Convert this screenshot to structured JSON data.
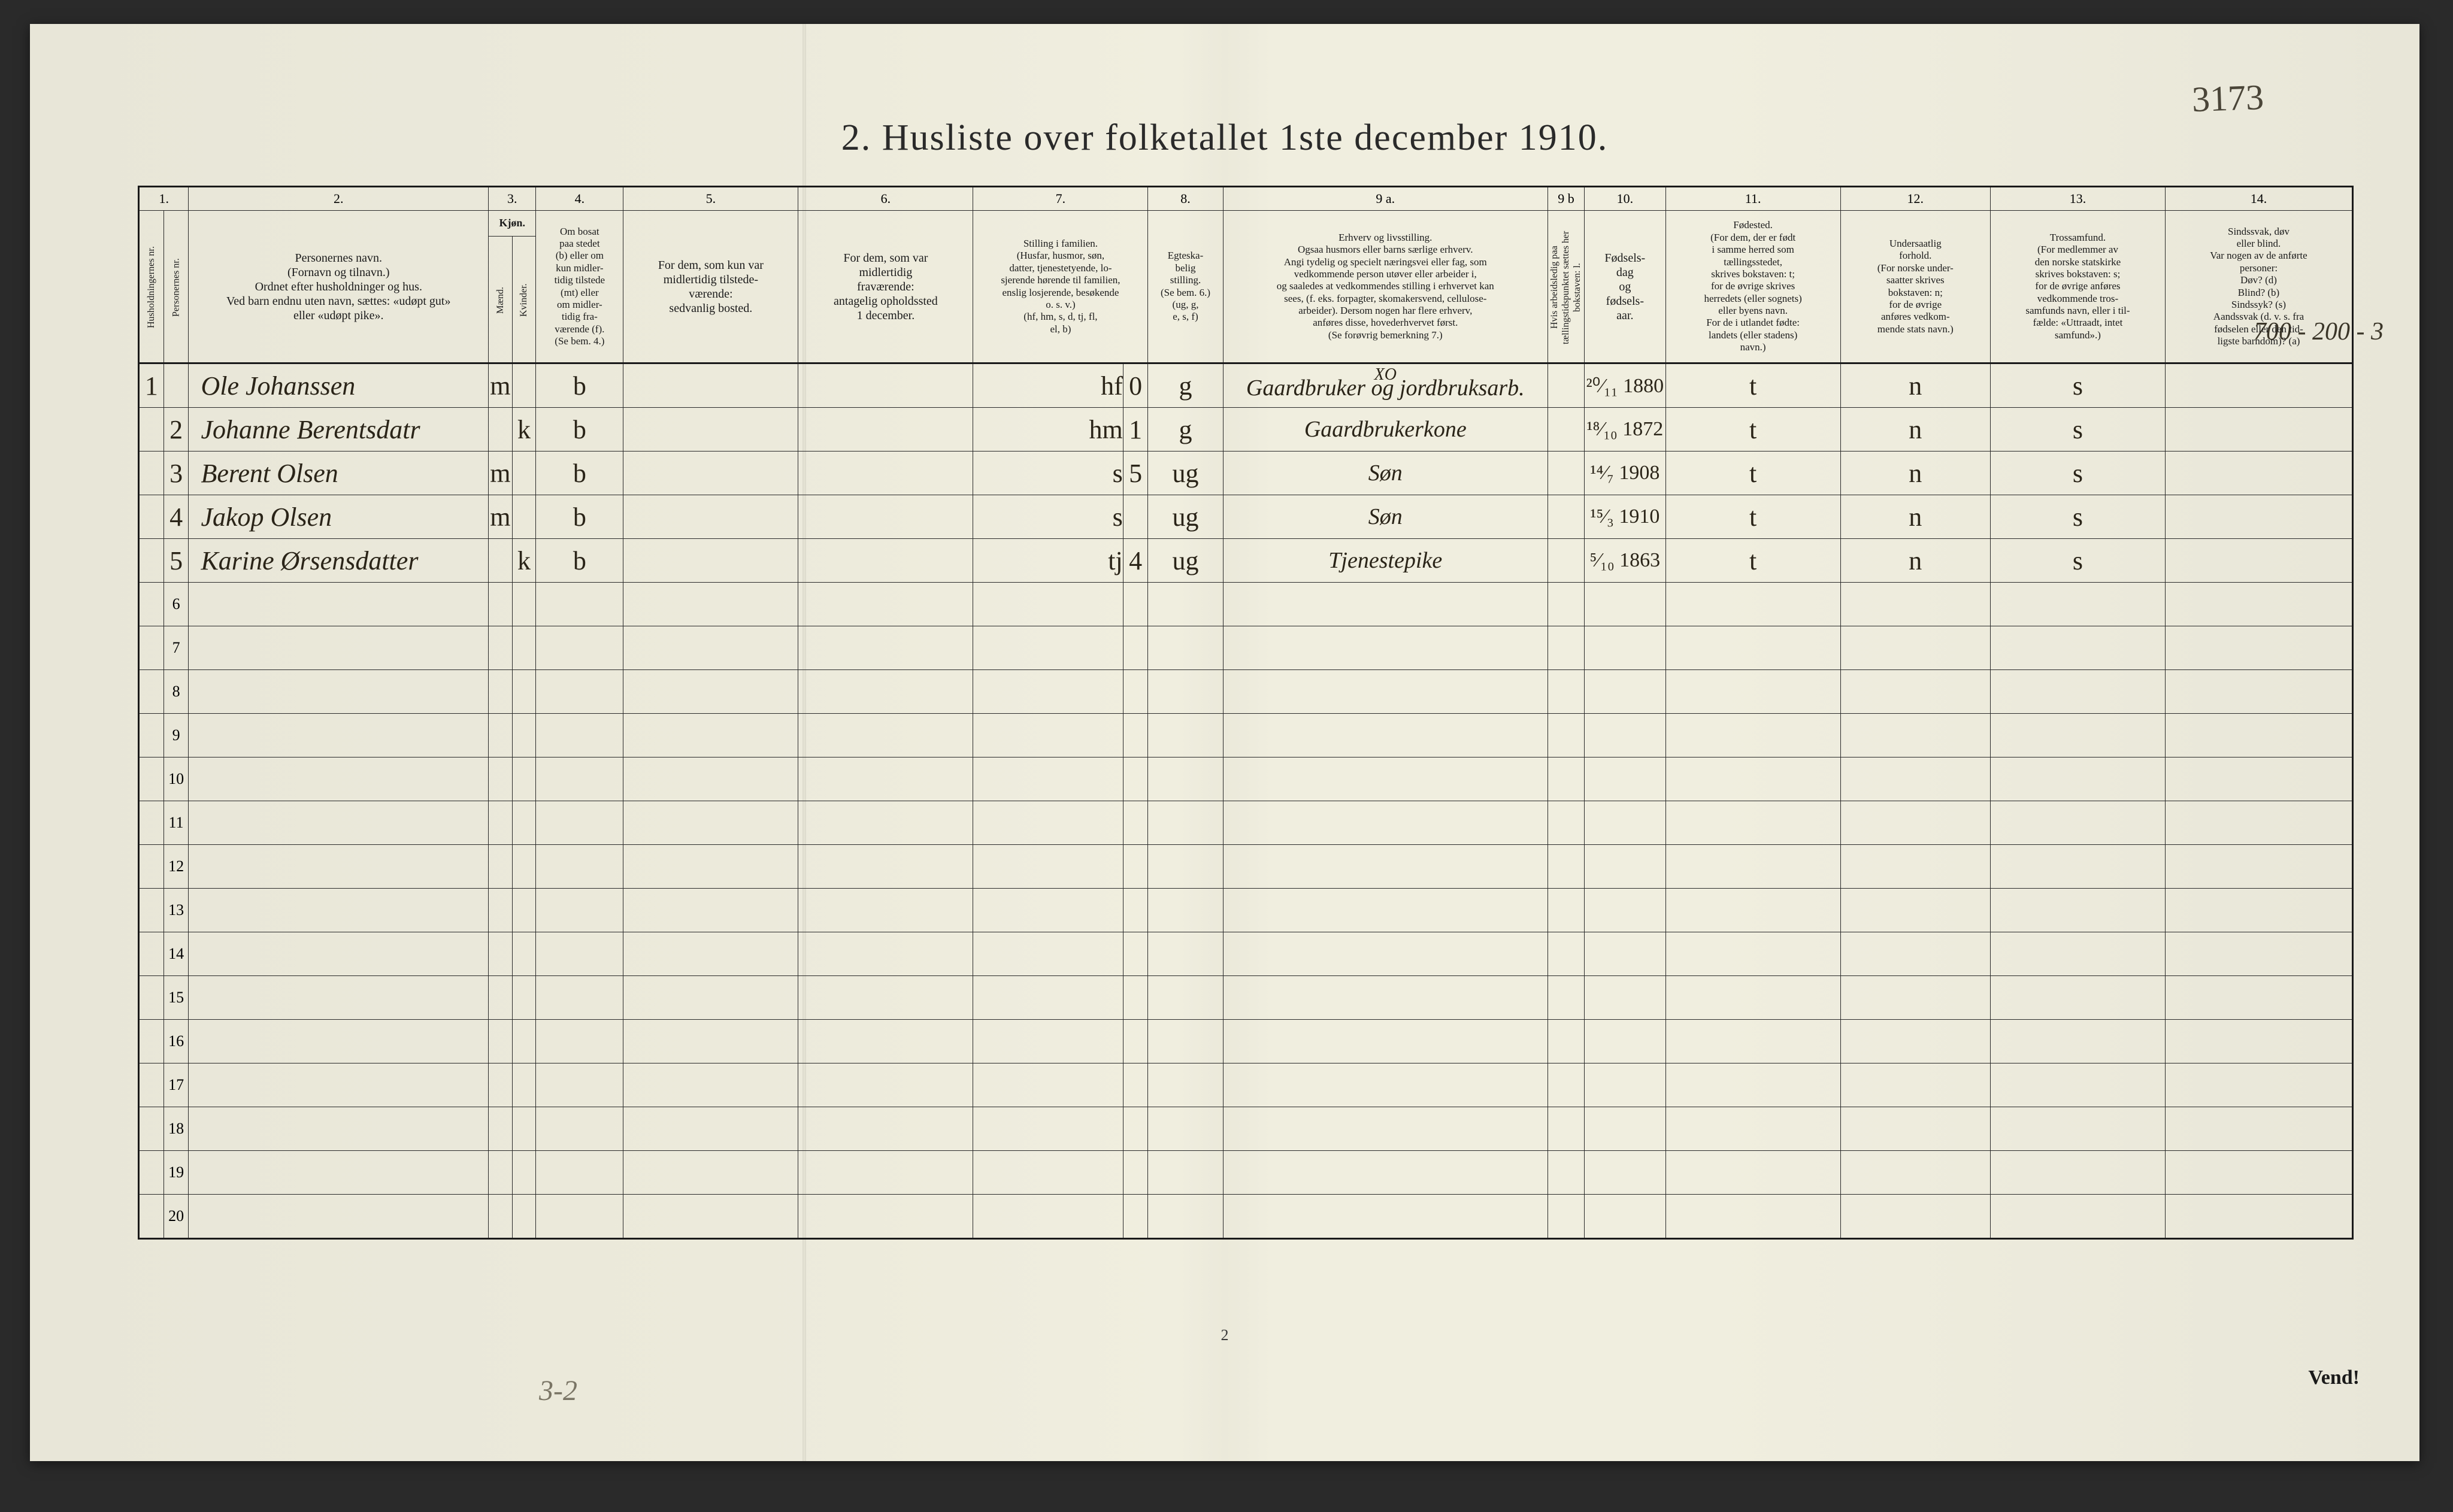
{
  "title": "2.  Husliste over folketallet 1ste december 1910.",
  "annotations": {
    "top_right": "3173",
    "margin_right": "700 - 200 - 3",
    "bottom_left": "3-2",
    "vend": "Vend!",
    "page_num": "2"
  },
  "column_numbers": [
    "1.",
    "",
    "2.",
    "3.",
    "",
    "4.",
    "5.",
    "6.",
    "7.",
    "8.",
    "9 a.",
    "9 b",
    "10.",
    "11.",
    "12.",
    "13.",
    "14."
  ],
  "headers": {
    "c1": "Husholdningernes nr.",
    "c1b": "Personernes nr.",
    "c2": "Personernes navn.\n(Fornavn og tilnavn.)\nOrdnet efter husholdninger og hus.\nVed barn endnu uten navn, sættes: «udøpt gut»\neller «udøpt pike».",
    "c3": "Kjøn.",
    "c3m": "Mænd.",
    "c3k": "Kvinder.",
    "c3_mk": "m.  k.",
    "c4": "Om bosat\npaa stedet\n(b) eller om\nkun midler-\ntidig tilstede\n(mt) eller\nom midler-\ntidig fra-\nværende (f).\n(Se bem. 4.)",
    "c5": "For dem, som kun var\nmidlertidig tilstede-\nværende:\nsedvanlig bosted.",
    "c6": "For dem, som var\nmidlertidig\nfraværende:\nantagelig opholdssted\n1 december.",
    "c7": "Stilling i familien.\n(Husfar, husmor, søn,\ndatter, tjenestetyende, lo-\nsjerende hørende til familien,\nenslig losjerende, besøkende\no. s. v.)\n(hf, hm, s, d, tj, fl,\nel, b)",
    "c8": "Egteska-\nbelig\nstilling.\n(Se bem. 6.)\n(ug, g,\ne, s, f)",
    "c9a": "Erhverv og livsstilling.\nOgsaa husmors eller barns særlige erhverv.\nAngi tydelig og specielt næringsvei eller fag, som\nvedkommende person utøver eller arbeider i,\nog saaledes at vedkommendes stilling i erhvervet kan\nsees, (f. eks. forpagter, skomakersvend, cellulose-\narbeider). Dersom nogen har flere erhverv,\nanføres disse, hovederhvervet først.\n(Se forøvrig bemerkning 7.)",
    "c9b": "Hvis arbeidsledig\npaa tællingstidspunktet sættes\nher bokstaven: l.",
    "c10": "Fødsels-\ndag\nog\nfødsels-\naar.",
    "c11": "Fødested.\n(For dem, der er født\ni samme herred som\ntællingsstedet,\nskrives bokstaven: t;\nfor de øvrige skrives\nherredets (eller sognets)\neller byens navn.\nFor de i utlandet fødte:\nlandets (eller stadens)\nnavn.)",
    "c12": "Undersaatlig\nforhold.\n(For norske under-\nsaatter skrives\nbokstaven: n;\nfor de øvrige\nanføres vedkom-\nmende stats navn.)",
    "c13": "Trossamfund.\n(For medlemmer av\nden norske statskirke\nskrives bokstaven: s;\nfor de øvrige anføres\nvedkommende tros-\nsamfunds navn, eller i til-\nfælde: «Uttraadt, intet\nsamfund».)",
    "c14": "Sindssvak, døv\neller blind.\nVar nogen av de anførte\npersoner:\nDøv?       (d)\nBlind?     (b)\nSindssyk? (s)\nAandssvak (d. v. s. fra\nfødselen eller den tid-\nligste barndom)? (a)"
  },
  "rows": [
    {
      "hh": "1",
      "pn": "",
      "name": "Ole Johanssen",
      "m": "m",
      "k": "",
      "bos": "b",
      "c5": "",
      "c6": "",
      "fam": "hf",
      "famnum": "0",
      "eg": "g",
      "occ_pre": "XO",
      "occ": "Gaardbruker og jordbruksarb.",
      "led": "",
      "born": "²⁰⁄₁₁ 1880",
      "fsted": "t",
      "nat": "n",
      "tro": "s",
      "c14": ""
    },
    {
      "hh": "",
      "pn": "2",
      "name": "Johanne Berentsdatr",
      "m": "",
      "k": "k",
      "bos": "b",
      "c5": "",
      "c6": "",
      "fam": "hm",
      "famnum": "1",
      "eg": "g",
      "occ_pre": "",
      "occ": "Gaardbrukerkone",
      "led": "",
      "born": "¹⁸⁄₁₀ 1872",
      "fsted": "t",
      "nat": "n",
      "tro": "s",
      "c14": ""
    },
    {
      "hh": "",
      "pn": "3",
      "name": "Berent Olsen",
      "m": "m",
      "k": "",
      "bos": "b",
      "c5": "",
      "c6": "",
      "fam": "s",
      "famnum": "5",
      "eg": "ug",
      "occ_pre": "",
      "occ": "Søn",
      "led": "",
      "born": "¹⁴⁄₇ 1908",
      "fsted": "t",
      "nat": "n",
      "tro": "s",
      "c14": ""
    },
    {
      "hh": "",
      "pn": "4",
      "name": "Jakop Olsen",
      "m": "m",
      "k": "",
      "bos": "b",
      "c5": "",
      "c6": "",
      "fam": "s",
      "famnum": "",
      "eg": "ug",
      "occ_pre": "",
      "occ": "Søn",
      "led": "",
      "born": "¹⁵⁄₃ 1910",
      "fsted": "t",
      "nat": "n",
      "tro": "s",
      "c14": ""
    },
    {
      "hh": "",
      "pn": "5",
      "name": "Karine Ørsensdatter",
      "m": "",
      "k": "k",
      "bos": "b",
      "c5": "",
      "c6": "",
      "fam": "tj",
      "famnum": "4",
      "eg": "ug",
      "occ_pre": "",
      "occ": "Tjenestepike",
      "led": "",
      "born": "⁵⁄₁₀ 1863",
      "fsted": "t",
      "nat": "n",
      "tro": "s",
      "c14": ""
    }
  ],
  "empty_rows": [
    6,
    7,
    8,
    9,
    10,
    11,
    12,
    13,
    14,
    15,
    16,
    17,
    18,
    19,
    20
  ],
  "col_widths": {
    "c1": 40,
    "c1b": 40,
    "c2": 480,
    "c3m": 38,
    "c3k": 38,
    "c4": 140,
    "c5": 280,
    "c6": 280,
    "c7": 280,
    "c8": 120,
    "c9a": 520,
    "c9b": 50,
    "c10": 130,
    "c11": 280,
    "c12": 240,
    "c13": 280,
    "c14": 300
  },
  "colors": {
    "paper": "#eceadb",
    "ink": "#1a1a1a",
    "handwriting": "#2a2418",
    "pencil": "#7a7565"
  }
}
